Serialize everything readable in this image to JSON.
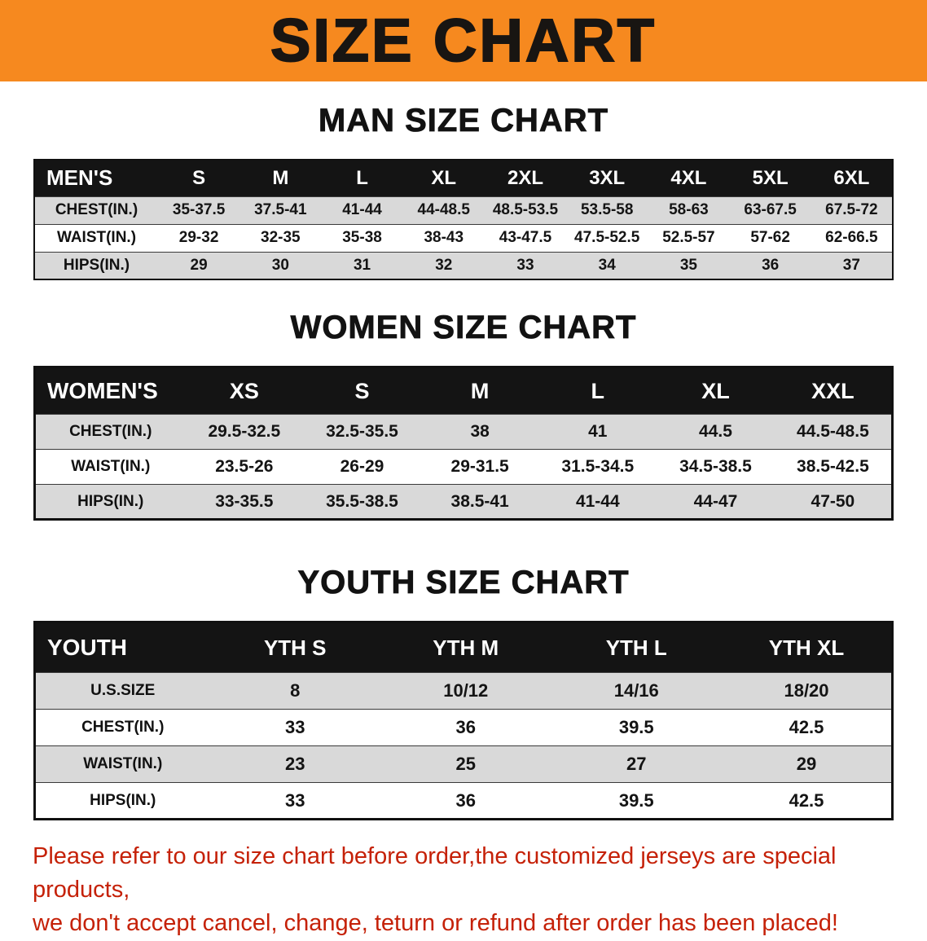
{
  "banner": {
    "title": "SIZE CHART",
    "bg_color": "#F6891F",
    "text_color": "#181512"
  },
  "sections": [
    {
      "heading": "MAN SIZE CHART",
      "table": {
        "header": [
          "MEN'S",
          "S",
          "M",
          "L",
          "XL",
          "2XL",
          "3XL",
          "4XL",
          "5XL",
          "6XL"
        ],
        "rows": [
          [
            "CHEST(IN.)",
            "35-37.5",
            "37.5-41",
            "41-44",
            "44-48.5",
            "48.5-53.5",
            "53.5-58",
            "58-63",
            "63-67.5",
            "67.5-72"
          ],
          [
            "WAIST(IN.)",
            "29-32",
            "32-35",
            "35-38",
            "38-43",
            "43-47.5",
            "47.5-52.5",
            "52.5-57",
            "57-62",
            "62-66.5"
          ],
          [
            "HIPS(IN.)",
            "29",
            "30",
            "31",
            "32",
            "33",
            "34",
            "35",
            "36",
            "37"
          ]
        ]
      }
    },
    {
      "heading": "WOMEN SIZE CHART",
      "table": {
        "header": [
          "WOMEN'S",
          "XS",
          "S",
          "M",
          "L",
          "XL",
          "XXL"
        ],
        "rows": [
          [
            "CHEST(IN.)",
            "29.5-32.5",
            "32.5-35.5",
            "38",
            "41",
            "44.5",
            "44.5-48.5"
          ],
          [
            "WAIST(IN.)",
            "23.5-26",
            "26-29",
            "29-31.5",
            "31.5-34.5",
            "34.5-38.5",
            "38.5-42.5"
          ],
          [
            "HIPS(IN.)",
            "33-35.5",
            "35.5-38.5",
            "38.5-41",
            "41-44",
            "44-47",
            "47-50"
          ]
        ]
      }
    },
    {
      "heading": "YOUTH SIZE CHART",
      "table": {
        "header": [
          "YOUTH",
          "YTH S",
          "YTH M",
          "YTH L",
          "YTH XL"
        ],
        "rows": [
          [
            "U.S.SIZE",
            "8",
            "10/12",
            "14/16",
            "18/20"
          ],
          [
            "CHEST(IN.)",
            "33",
            "36",
            "39.5",
            "42.5"
          ],
          [
            "WAIST(IN.)",
            "23",
            "25",
            "27",
            "29"
          ],
          [
            "HIPS(IN.)",
            "33",
            "36",
            "39.5",
            "42.5"
          ]
        ]
      }
    }
  ],
  "disclaimer": {
    "line1": "Please refer to our size chart before order,the customized jerseys are special products,",
    "line2": "we don't accept cancel, change, teturn or refund after order has been placed!",
    "color": "#C52108"
  }
}
